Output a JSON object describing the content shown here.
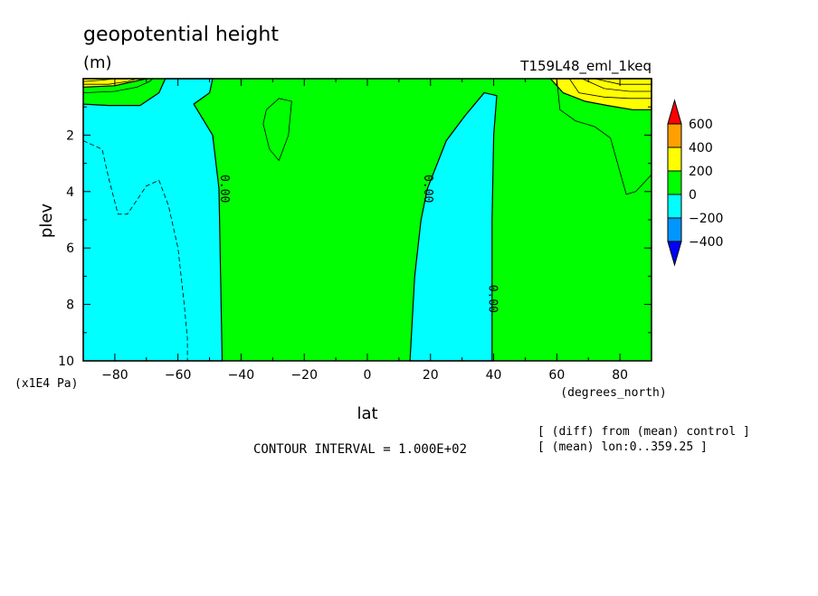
{
  "chart_data": {
    "type": "heatmap",
    "subtype": "filled-contour",
    "title": "geopotential height",
    "units": "(m)",
    "subtitle_right": "T159L48_eml_1keq",
    "xlabel": "lat",
    "x_units": "(degrees_north)",
    "ylabel": "plev",
    "y_units": "(x1E4 Pa)",
    "xlim": [
      -90,
      90
    ],
    "ylim": [
      10,
      0
    ],
    "xticks": [
      -80,
      -60,
      -40,
      -20,
      0,
      20,
      40,
      60,
      80
    ],
    "yticks": [
      2,
      4,
      6,
      8,
      10
    ],
    "contour_interval_text": "CONTOUR INTERVAL = 1.000E+02",
    "notes": [
      "[ (diff) from (mean) control ]",
      "[ (mean) lon:0..359.25 ]"
    ],
    "contour_labels": [
      {
        "text": "0.00",
        "lat": -45.5,
        "plev": 3.9
      },
      {
        "text": "0.00",
        "lat": 19,
        "plev": 3.9
      },
      {
        "text": "0.00",
        "lat": 39.5,
        "plev": 7.8
      }
    ],
    "colorbar": {
      "labels": [
        "600",
        "400",
        "200",
        "0",
        "-200",
        "-400"
      ],
      "bins": [
        {
          "range": "> 600",
          "color": "#ff0000"
        },
        {
          "range": "400 to 600",
          "color": "#ffa000"
        },
        {
          "range": "200 to 400",
          "color": "#ffff00"
        },
        {
          "range": "0 to 200",
          "color": "#00ff00"
        },
        {
          "range": "-200 to 0",
          "color": "#00ffff"
        },
        {
          "range": "-400 to -200",
          "color": "#0096ff"
        },
        {
          "range": "< -400",
          "color": "#0000ff"
        }
      ]
    },
    "regions": [
      {
        "name": "negative-west",
        "level": "-200 to 0",
        "color": "#00ffff",
        "points": [
          [
            -90,
            0.9
          ],
          [
            -82,
            0.95
          ],
          [
            -72,
            0.95
          ],
          [
            -66,
            0.5
          ],
          [
            -64,
            0
          ],
          [
            -49,
            0
          ],
          [
            -50,
            0.5
          ],
          [
            -55,
            0.9
          ],
          [
            -49,
            2.0
          ],
          [
            -47,
            3.9
          ],
          [
            -46,
            10
          ],
          [
            -90,
            10
          ]
        ]
      },
      {
        "name": "negative-central",
        "level": "-200 to 0",
        "color": "#00ffff",
        "points": [
          [
            13.5,
            10
          ],
          [
            15,
            7
          ],
          [
            17,
            5
          ],
          [
            19,
            3.9
          ],
          [
            25,
            2.2
          ],
          [
            31,
            1.3
          ],
          [
            37,
            0.5
          ],
          [
            41,
            0.6
          ],
          [
            40,
            2
          ],
          [
            39.5,
            5
          ],
          [
            39.5,
            7.8
          ],
          [
            39.5,
            10
          ]
        ]
      },
      {
        "name": "orange-north",
        "level": "400 to 600",
        "color": "#ffa000",
        "points": [
          [
            65,
            0
          ],
          [
            90,
            0
          ],
          [
            90,
            0.3
          ],
          [
            80,
            0.3
          ],
          [
            71,
            0.2
          ]
        ]
      },
      {
        "name": "yellow-north",
        "level": "200 to 400",
        "color": "#ffff00",
        "points": [
          [
            58,
            0
          ],
          [
            90,
            0
          ],
          [
            90,
            1.1
          ],
          [
            84,
            1.1
          ],
          [
            76,
            0.95
          ],
          [
            69,
            0.8
          ],
          [
            62,
            0.5
          ]
        ]
      },
      {
        "name": "orange-south",
        "level": "400 to 600",
        "color": "#ffa000",
        "points": [
          [
            -90,
            0
          ],
          [
            -72,
            0
          ],
          [
            -78,
            0.1
          ],
          [
            -90,
            0.15
          ]
        ]
      },
      {
        "name": "yellow-south",
        "level": "200 to 400",
        "color": "#ffff00",
        "points": [
          [
            -90,
            0
          ],
          [
            -70,
            0
          ],
          [
            -80,
            0.25
          ],
          [
            -90,
            0.3
          ]
        ]
      }
    ],
    "contour_lines": [
      {
        "style": "solid",
        "points": [
          [
            -90,
            0.5
          ],
          [
            -80,
            0.45
          ],
          [
            -73,
            0.3
          ],
          [
            -69,
            0.1
          ],
          [
            -68,
            0
          ]
        ]
      },
      {
        "style": "solid",
        "points": [
          [
            -90,
            0.2
          ],
          [
            -82,
            0.2
          ],
          [
            -76,
            0.1
          ],
          [
            -73,
            0
          ]
        ]
      },
      {
        "style": "solid",
        "points": [
          [
            -90,
            0.1
          ],
          [
            -84,
            0.05
          ],
          [
            -80,
            0
          ]
        ]
      },
      {
        "style": "solid",
        "closed": true,
        "points": [
          [
            -32,
            1.1
          ],
          [
            -28,
            0.7
          ],
          [
            -24,
            0.8
          ],
          [
            -25,
            2.0
          ],
          [
            -28,
            2.9
          ],
          [
            -31,
            2.5
          ],
          [
            -33,
            1.6
          ]
        ]
      },
      {
        "style": "solid",
        "points": [
          [
            60,
            0
          ],
          [
            61,
            1.1
          ],
          [
            66,
            1.5
          ],
          [
            72,
            1.7
          ],
          [
            77,
            2.1
          ],
          [
            80,
            3.3
          ],
          [
            82,
            4.1
          ],
          [
            85,
            4.0
          ],
          [
            90,
            3.4
          ]
        ]
      },
      {
        "style": "solid",
        "points": [
          [
            64,
            0
          ],
          [
            67,
            0.5
          ],
          [
            75,
            0.65
          ],
          [
            83,
            0.7
          ],
          [
            90,
            0.7
          ]
        ]
      },
      {
        "style": "solid",
        "points": [
          [
            68,
            0
          ],
          [
            75,
            0.35
          ],
          [
            83,
            0.45
          ],
          [
            90,
            0.45
          ]
        ]
      },
      {
        "style": "solid",
        "points": [
          [
            72,
            0
          ],
          [
            80,
            0.2
          ],
          [
            90,
            0.2
          ]
        ]
      },
      {
        "style": "dashed",
        "points": [
          [
            -90,
            2.2
          ],
          [
            -84,
            2.5
          ],
          [
            -82,
            3.5
          ],
          [
            -79,
            4.8
          ],
          [
            -76,
            4.8
          ],
          [
            -70,
            3.8
          ],
          [
            -66,
            3.6
          ],
          [
            -63,
            4.5
          ],
          [
            -60,
            6
          ],
          [
            -58,
            8
          ],
          [
            -57,
            9.2
          ],
          [
            -57,
            10
          ]
        ]
      }
    ]
  }
}
